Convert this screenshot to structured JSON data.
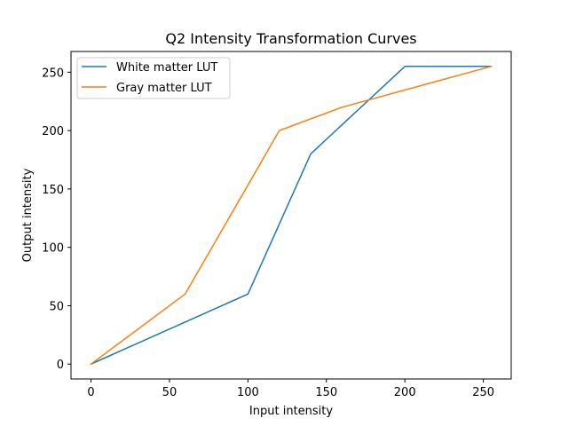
{
  "chart_data": {
    "type": "line",
    "title": "Q2 Intensity Transformation Curves",
    "xlabel": "Input intensity",
    "ylabel": "Output intensity",
    "xlim": [
      -12.75,
      267.75
    ],
    "ylim": [
      -12.75,
      267.75
    ],
    "xticks": [
      0,
      50,
      100,
      150,
      200,
      250
    ],
    "yticks": [
      0,
      50,
      100,
      150,
      200,
      250
    ],
    "xtick_labels": [
      "0",
      "50",
      "100",
      "150",
      "200",
      "250"
    ],
    "ytick_labels": [
      "0",
      "50",
      "100",
      "150",
      "200",
      "250"
    ],
    "grid": false,
    "legend_position": "upper-left",
    "series": [
      {
        "name": "White matter LUT",
        "color": "#1f77b4",
        "x": [
          0,
          100,
          140,
          200,
          255
        ],
        "y": [
          0,
          60,
          180,
          255,
          255
        ]
      },
      {
        "name": "Gray matter LUT",
        "color": "#ff7f0e",
        "x": [
          0,
          60,
          120,
          160,
          255
        ],
        "y": [
          0,
          60,
          200,
          220,
          255
        ]
      }
    ]
  }
}
